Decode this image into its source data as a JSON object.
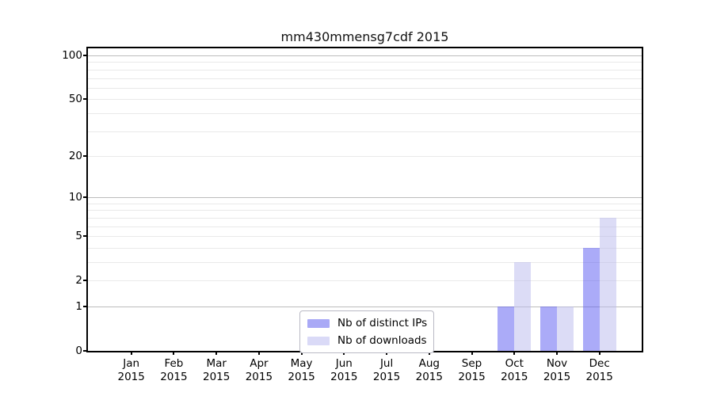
{
  "title": "mm430mmensg7cdf 2015",
  "legend": {
    "items": [
      {
        "label": "Nb of distinct IPs",
        "color": "#A9A9F6"
      },
      {
        "label": "Nb of downloads",
        "color": "#DADAF7"
      }
    ]
  },
  "axes": {
    "y_tick_values": [
      100,
      50,
      20,
      10,
      5,
      2,
      1,
      0
    ],
    "x_tick_labels": [
      {
        "month": "Jan",
        "year": "2015"
      },
      {
        "month": "Feb",
        "year": "2015"
      },
      {
        "month": "Mar",
        "year": "2015"
      },
      {
        "month": "Apr",
        "year": "2015"
      },
      {
        "month": "May",
        "year": "2015"
      },
      {
        "month": "Jun",
        "year": "2015"
      },
      {
        "month": "Jul",
        "year": "2015"
      },
      {
        "month": "Aug",
        "year": "2015"
      },
      {
        "month": "Sep",
        "year": "2015"
      },
      {
        "month": "Oct",
        "year": "2015"
      },
      {
        "month": "Nov",
        "year": "2015"
      },
      {
        "month": "Dec",
        "year": "2015"
      }
    ]
  },
  "chart_data": {
    "type": "bar",
    "title": "mm430mmensg7cdf 2015",
    "categories": [
      "Jan 2015",
      "Feb 2015",
      "Mar 2015",
      "Apr 2015",
      "May 2015",
      "Jun 2015",
      "Jul 2015",
      "Aug 2015",
      "Sep 2015",
      "Oct 2015",
      "Nov 2015",
      "Dec 2015"
    ],
    "series": [
      {
        "name": "Nb of distinct IPs",
        "color_rgba": "rgba(87,87,241,0.5)",
        "color_hex": "#ABABF8",
        "values": [
          0,
          0,
          0,
          0,
          0,
          0,
          0,
          0,
          0,
          1,
          1,
          4
        ]
      },
      {
        "name": "Nb of downloads",
        "color_rgba": "rgba(185,185,237,0.5)",
        "color_hex": "#DCDCF6",
        "values": [
          0,
          0,
          0,
          0,
          0,
          0,
          0,
          0,
          0,
          3,
          1,
          7
        ]
      }
    ],
    "yscale": "log1p",
    "ylim": [
      0,
      112
    ],
    "ytick_values": [
      0,
      1,
      2,
      5,
      10,
      20,
      50,
      100
    ],
    "minor_grid_values": [
      2,
      3,
      4,
      5,
      6,
      7,
      8,
      9,
      20,
      30,
      40,
      50,
      60,
      70,
      80,
      90
    ],
    "major_grid_values": [
      1,
      10,
      100
    ],
    "grid": "horizontal",
    "legend_position": "lower center inside",
    "xlabel": "",
    "ylabel": ""
  }
}
